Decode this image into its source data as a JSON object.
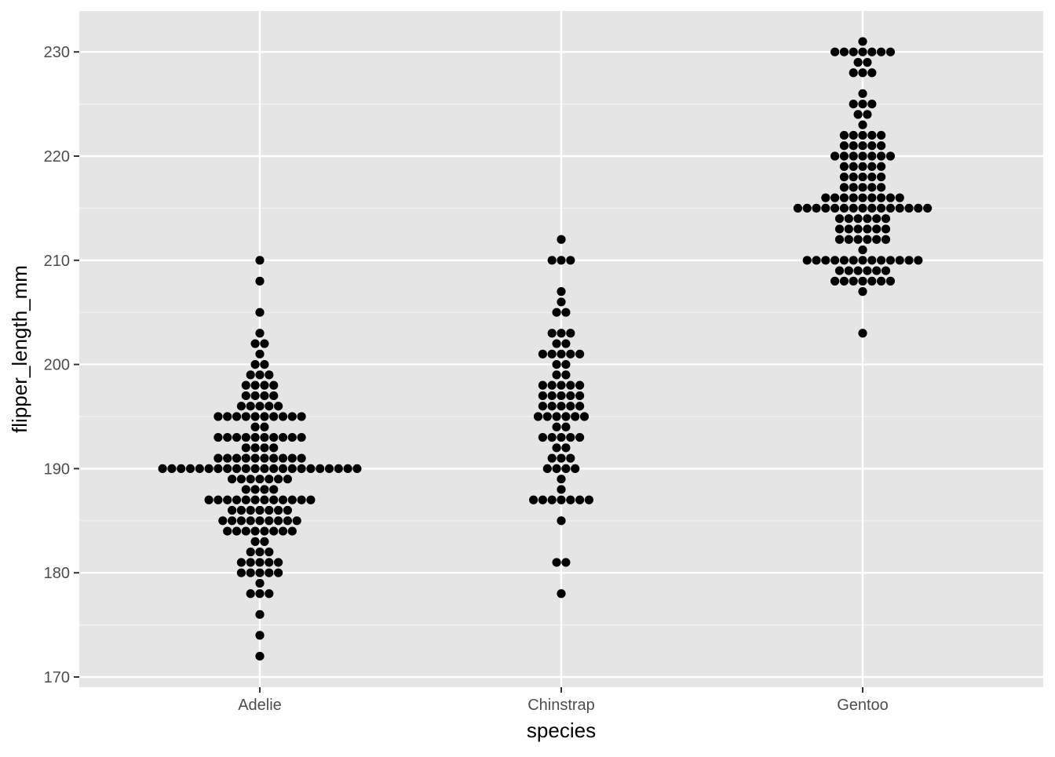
{
  "chart_data": {
    "type": "scatter",
    "subtype": "dotplot",
    "title": "",
    "xlabel": "species",
    "ylabel": "flipper_length_mm",
    "categories": [
      "Adelie",
      "Chinstrap",
      "Gentoo"
    ],
    "ylim": [
      169,
      234
    ],
    "y_ticks": [
      170,
      180,
      190,
      200,
      210,
      220,
      230
    ],
    "y_tick_labels": [
      "170",
      "180",
      "190",
      "200",
      "210",
      "220",
      "230"
    ],
    "grid": true,
    "legend": "none",
    "colors": {
      "panel_background": "#e5e5e5",
      "grid_major": "#ffffff",
      "grid_minor": "#f2f2f2",
      "point": "#000000",
      "tick_label": "#4d4d4d",
      "axis_title": "#000000"
    },
    "series": [
      {
        "values": [
          210,
          208,
          205,
          203,
          202,
          202,
          201,
          200,
          200,
          199,
          199,
          199,
          198,
          198,
          198,
          198,
          197,
          197,
          197,
          197,
          196,
          196,
          196,
          196,
          196,
          195,
          195,
          195,
          195,
          195,
          195,
          195,
          195,
          195,
          195,
          194,
          194,
          193,
          193,
          193,
          193,
          193,
          193,
          193,
          193,
          193,
          193,
          192,
          192,
          192,
          192,
          191,
          191,
          191,
          191,
          191,
          191,
          191,
          191,
          191,
          191,
          190,
          190,
          190,
          190,
          190,
          190,
          190,
          190,
          190,
          190,
          190,
          190,
          190,
          190,
          190,
          190,
          190,
          190,
          190,
          190,
          190,
          190,
          189,
          189,
          189,
          189,
          189,
          189,
          189,
          188,
          188,
          188,
          188,
          187,
          187,
          187,
          187,
          187,
          187,
          187,
          187,
          187,
          187,
          187,
          187,
          186,
          186,
          186,
          186,
          186,
          186,
          186,
          185,
          185,
          185,
          185,
          185,
          185,
          185,
          185,
          185,
          184,
          184,
          184,
          184,
          184,
          184,
          184,
          184,
          183,
          183,
          182,
          182,
          182,
          181,
          181,
          181,
          181,
          181,
          180,
          180,
          180,
          180,
          180,
          179,
          178,
          178,
          178,
          176,
          174,
          172
        ]
      },
      {
        "values": [
          212,
          210,
          210,
          210,
          207,
          206,
          205,
          205,
          203,
          203,
          203,
          202,
          202,
          201,
          201,
          201,
          201,
          201,
          200,
          200,
          199,
          199,
          198,
          198,
          198,
          198,
          198,
          197,
          197,
          197,
          197,
          197,
          196,
          196,
          196,
          196,
          196,
          195,
          195,
          195,
          195,
          195,
          195,
          194,
          194,
          193,
          193,
          193,
          193,
          193,
          192,
          192,
          191,
          191,
          191,
          190,
          190,
          190,
          190,
          189,
          188,
          187,
          187,
          187,
          187,
          187,
          187,
          187,
          185,
          181,
          181,
          178
        ]
      },
      {
        "values": [
          231,
          230,
          230,
          230,
          230,
          230,
          230,
          230,
          229,
          229,
          228,
          228,
          228,
          226,
          225,
          225,
          225,
          224,
          224,
          223,
          222,
          222,
          222,
          222,
          222,
          221,
          221,
          221,
          221,
          221,
          220,
          220,
          220,
          220,
          220,
          220,
          220,
          219,
          219,
          219,
          219,
          219,
          218,
          218,
          218,
          218,
          218,
          217,
          217,
          217,
          217,
          217,
          216,
          216,
          216,
          216,
          216,
          216,
          216,
          216,
          216,
          215,
          215,
          215,
          215,
          215,
          215,
          215,
          215,
          215,
          215,
          215,
          215,
          215,
          215,
          215,
          214,
          214,
          214,
          214,
          214,
          214,
          213,
          213,
          213,
          213,
          213,
          213,
          212,
          212,
          212,
          212,
          212,
          212,
          211,
          210,
          210,
          210,
          210,
          210,
          210,
          210,
          210,
          210,
          210,
          210,
          210,
          210,
          209,
          209,
          209,
          209,
          209,
          209,
          208,
          208,
          208,
          208,
          208,
          208,
          208,
          207,
          203
        ]
      }
    ]
  }
}
